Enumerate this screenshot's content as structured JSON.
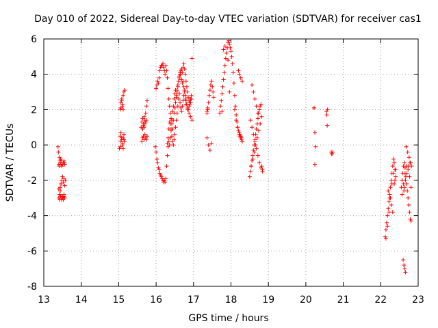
{
  "chart_data": {
    "type": "scatter",
    "title": "Day 010 of 2022, Sidereal Day-to-day VTEC variation (SDTVAR) for receiver cas1",
    "xlabel": "GPS time / hours",
    "ylabel": "SDTVAR / TECUs",
    "xlim": [
      13,
      23
    ],
    "ylim": [
      -8,
      6
    ],
    "xticks": [
      13,
      14,
      15,
      16,
      17,
      18,
      19,
      20,
      21,
      22,
      23
    ],
    "yticks": [
      -8,
      -6,
      -4,
      -2,
      0,
      2,
      4,
      6
    ],
    "grid": true,
    "marker": "+",
    "marker_color": "#ff0000",
    "series": [
      {
        "name": "SDTVAR",
        "x": [
          13.38,
          13.39,
          13.4,
          13.41,
          13.42,
          13.43,
          13.44,
          13.45,
          13.46,
          13.47,
          13.48,
          13.5,
          13.52,
          13.54,
          13.55,
          13.56,
          13.4,
          13.42,
          13.44,
          13.46,
          13.48,
          13.5,
          13.52,
          13.54,
          13.56,
          13.58,
          13.4,
          13.42,
          13.44,
          13.46,
          13.48,
          13.5,
          13.52,
          13.54,
          13.44,
          13.46,
          13.5,
          13.52,
          13.54,
          13.56,
          15.02,
          15.04,
          15.06,
          15.08,
          15.1,
          15.12,
          15.14,
          15.16,
          15.04,
          15.06,
          15.08,
          15.1,
          15.12,
          15.14,
          15.16,
          15.04,
          15.06,
          15.08,
          15.1,
          15.12,
          15.14,
          15.06,
          15.08,
          15.1,
          15.12,
          15.6,
          15.62,
          15.64,
          15.66,
          15.68,
          15.7,
          15.72,
          15.74,
          15.76,
          15.62,
          15.64,
          15.66,
          15.68,
          15.7,
          15.72,
          15.74,
          15.76,
          15.64,
          15.66,
          15.68,
          15.7,
          15.72,
          15.74,
          15.98,
          16.0,
          16.02,
          16.04,
          16.06,
          16.08,
          16.1,
          16.12,
          16.14,
          16.16,
          16.18,
          16.2,
          16.22,
          16.24,
          16.26,
          16.28,
          16.3,
          16.32,
          16.34,
          16.36,
          16.38,
          16.4,
          16.42,
          16.44,
          16.46,
          16.48,
          16.5,
          16.52,
          16.54,
          16.56,
          16.58,
          16.6,
          16.62,
          16.64,
          16.66,
          16.68,
          16.7,
          16.72,
          16.74,
          16.76,
          16.78,
          16.8,
          16.82,
          16.84,
          16.86,
          16.88,
          16.9,
          16.92,
          16.94,
          16.0,
          16.02,
          16.04,
          16.06,
          16.08,
          16.1,
          16.12,
          16.14,
          16.16,
          16.18,
          16.2,
          16.22,
          16.24,
          16.26,
          16.28,
          16.3,
          16.32,
          16.34,
          16.36,
          16.38,
          16.4,
          16.42,
          16.44,
          16.46,
          16.48,
          16.5,
          16.52,
          16.54,
          16.56,
          16.58,
          16.6,
          16.62,
          16.64,
          16.66,
          16.68,
          16.7,
          16.72,
          16.74,
          16.76,
          16.78,
          16.8,
          16.82,
          16.84,
          16.86,
          16.88,
          16.9,
          16.92,
          16.94,
          16.96,
          16.3,
          16.32,
          16.34,
          16.36,
          16.38,
          16.4,
          16.42,
          16.44,
          16.46,
          16.48,
          16.5,
          16.52,
          16.54,
          16.56,
          16.58,
          16.6,
          16.62,
          16.64,
          16.66,
          16.68,
          16.7,
          16.72,
          16.74,
          16.76,
          16.78,
          16.8,
          16.84,
          16.88,
          16.92,
          16.96,
          17.36,
          17.38,
          17.4,
          17.42,
          17.44,
          17.46,
          17.48,
          17.5,
          17.52,
          17.54,
          17.36,
          17.4,
          17.44,
          17.48,
          17.36,
          17.38,
          17.7,
          17.72,
          17.74,
          17.76,
          17.78,
          17.8,
          17.82,
          17.84,
          17.86,
          17.88,
          17.9,
          17.92,
          17.94,
          17.96,
          17.98,
          18.0,
          18.02,
          18.04,
          18.06,
          18.08,
          18.1,
          18.12,
          18.14,
          18.16,
          18.18,
          18.2,
          18.22,
          18.24,
          18.26,
          18.28,
          18.3,
          17.76,
          17.8,
          17.84,
          17.88,
          17.92,
          17.96,
          18.1,
          18.14,
          18.18,
          18.22,
          18.24,
          18.26,
          18.28,
          18.3,
          18.2,
          18.22,
          18.26,
          18.3,
          18.5,
          18.52,
          18.54,
          18.56,
          18.58,
          18.6,
          18.62,
          18.64,
          18.66,
          18.68,
          18.7,
          18.72,
          18.74,
          18.76,
          18.78,
          18.8,
          18.82,
          18.84,
          18.52,
          18.56,
          18.6,
          18.64,
          18.68,
          18.72,
          18.76,
          18.8,
          18.84,
          18.54,
          18.58,
          18.62,
          18.66,
          18.7,
          18.74,
          18.78,
          18.82,
          18.56,
          18.6,
          18.64,
          18.68,
          18.72,
          20.22,
          20.24,
          20.26,
          20.24,
          20.22,
          20.55,
          20.56,
          20.57,
          20.58,
          20.68,
          20.7,
          20.72,
          20.69,
          22.12,
          22.14,
          22.16,
          22.18,
          22.2,
          22.22,
          22.24,
          22.26,
          22.28,
          22.3,
          22.32,
          22.34,
          22.36,
          22.38,
          22.4,
          22.14,
          22.18,
          22.22,
          22.26,
          22.3,
          22.34,
          22.38,
          22.2,
          22.24,
          22.28,
          22.32,
          22.36,
          22.4,
          22.55,
          22.57,
          22.59,
          22.61,
          22.63,
          22.65,
          22.67,
          22.69,
          22.71,
          22.73,
          22.75,
          22.77,
          22.79,
          22.81,
          22.57,
          22.61,
          22.65,
          22.69,
          22.73,
          22.77,
          22.81,
          22.6,
          22.62,
          22.64,
          22.66,
          22.62,
          22.64,
          22.66,
          22.7,
          22.74,
          22.78,
          22.82,
          22.68,
          22.72,
          22.76,
          22.8
        ],
        "y": [
          -0.1,
          -0.4,
          -1.1,
          -1.2,
          -0.7,
          -0.9,
          -1.0,
          -0.8,
          -1.1,
          -0.9,
          -1.2,
          -1.1,
          -1.0,
          -0.9,
          -1.0,
          -1.1,
          -2.5,
          -2.8,
          -2.4,
          -2.2,
          -2.0,
          -1.8,
          -2.1,
          -1.9,
          -2.3,
          -2.0,
          -3.0,
          -3.1,
          -2.9,
          -3.0,
          -3.1,
          -2.9,
          -3.0,
          -2.8,
          -2.6,
          -2.9,
          -3.0,
          -3.1,
          -2.9,
          -3.0,
          -0.2,
          0.5,
          0.7,
          0.3,
          0.0,
          0.4,
          0.6,
          0.2,
          2.0,
          2.4,
          2.6,
          2.2,
          2.8,
          3.0,
          3.1,
          -0.1,
          0.2,
          0.4,
          0.1,
          -0.2,
          0.3,
          2.1,
          2.5,
          2.3,
          2.0,
          1.0,
          1.3,
          1.5,
          1.2,
          1.6,
          1.4,
          1.8,
          2.2,
          2.5,
          0.2,
          0.4,
          0.5,
          0.3,
          0.6,
          0.4,
          0.3,
          0.5,
          0.9,
          1.1,
          1.0,
          1.2,
          1.3,
          1.4,
          -0.1,
          -0.4,
          -0.8,
          -1.0,
          -1.3,
          -1.4,
          -1.6,
          -1.7,
          -1.8,
          -1.9,
          -2.0,
          -2.1,
          -2.0,
          -2.1,
          -1.9,
          -1.2,
          -0.6,
          -0.1,
          0.2,
          0.0,
          0.4,
          0.9,
          1.4,
          1.9,
          2.2,
          2.6,
          2.9,
          3.1,
          2.8,
          3.1,
          3.4,
          3.6,
          3.9,
          4.1,
          4.0,
          3.7,
          3.5,
          3.6,
          3.3,
          3.1,
          2.8,
          2.5,
          2.3,
          2.1,
          2.0,
          2.2,
          2.4,
          2.6,
          2.8,
          3.2,
          3.4,
          3.6,
          3.5,
          3.8,
          4.2,
          4.4,
          4.5,
          4.5,
          4.6,
          4.4,
          4.2,
          4.0,
          4.5,
          4.2,
          3.8,
          3.2,
          2.6,
          2.2,
          1.8,
          1.5,
          1.2,
          0.9,
          1.4,
          1.8,
          2.1,
          2.4,
          2.7,
          3.0,
          3.3,
          3.6,
          3.8,
          4.0,
          4.2,
          4.3,
          4.1,
          4.4,
          4.6,
          4.3,
          4.0,
          3.6,
          3.3,
          3.0,
          2.7,
          2.5,
          2.3,
          2.4,
          2.6,
          4.9,
          0.1,
          0.4,
          0.9,
          1.3,
          1.2,
          0.8,
          0.5,
          0.2,
          0.0,
          0.3,
          0.6,
          1.0,
          1.4,
          1.8,
          2.2,
          2.6,
          2.9,
          2.4,
          2.1,
          1.9,
          2.2,
          2.5,
          2.8,
          3.0,
          2.6,
          2.3,
          2.0,
          1.8,
          1.6,
          1.4,
          1.9,
          2.1,
          2.4,
          2.8,
          3.1,
          3.4,
          3.6,
          3.3,
          3.0,
          2.7,
          0.4,
          0.0,
          -0.3,
          0.1,
          1.8,
          2.0,
          1.8,
          2.2,
          2.5,
          2.9,
          3.3,
          3.7,
          4.1,
          4.5,
          4.9,
          5.2,
          5.5,
          5.8,
          5.9,
          5.7,
          5.5,
          5.3,
          5.0,
          4.6,
          4.1,
          3.5,
          2.8,
          2.2,
          1.7,
          1.3,
          1.0,
          0.8,
          0.6,
          0.5,
          0.4,
          0.3,
          0.2,
          1.9,
          5.4,
          5.6,
          5.2,
          4.8,
          3.0,
          2.0,
          1.4,
          1.0,
          0.7,
          0.6,
          0.5,
          0.4,
          0.2,
          4.2,
          4.0,
          3.8,
          3.6,
          -1.8,
          -1.5,
          -1.2,
          -0.9,
          -0.6,
          -0.3,
          0.0,
          0.3,
          0.6,
          0.9,
          1.2,
          1.5,
          1.8,
          2.0,
          2.2,
          2.3,
          -1.2,
          -1.4,
          1.4,
          1.0,
          0.6,
          0.2,
          -0.2,
          -0.6,
          -1.0,
          -1.3,
          -1.5,
          -1.2,
          -0.8,
          -0.4,
          0.0,
          0.4,
          0.8,
          1.2,
          1.6,
          3.4,
          3.0,
          2.6,
          2.2,
          1.8,
          2.1,
          0.7,
          -0.1,
          -1.1,
          2.1,
          1.9,
          1.7,
          1.1,
          2.0,
          -0.4,
          -0.5,
          -0.4,
          -0.5,
          -5.2,
          -4.8,
          -4.4,
          -4.0,
          -3.6,
          -3.2,
          -2.8,
          -2.4,
          -2.0,
          -1.6,
          -1.2,
          -0.8,
          -1.0,
          -1.4,
          -1.8,
          -5.3,
          -4.6,
          -3.8,
          -3.0,
          -2.2,
          -1.6,
          -2.0,
          -2.6,
          -3.0,
          -3.4,
          -3.8,
          -2.2,
          -1.4,
          -2.4,
          -2.0,
          -1.6,
          -1.2,
          -1.0,
          -1.3,
          -1.8,
          -2.2,
          -2.6,
          -3.0,
          -3.4,
          -3.8,
          -4.2,
          -4.3,
          -2.8,
          -2.2,
          -1.6,
          -1.2,
          -1.4,
          -1.8,
          -2.4,
          -6.5,
          -6.8,
          -7.0,
          -7.2,
          -2.6,
          -2.4,
          -2.0,
          -1.6,
          -1.2,
          -1.0,
          -1.2,
          -0.1,
          -0.4,
          -0.7,
          -1.0
        ]
      }
    ]
  }
}
